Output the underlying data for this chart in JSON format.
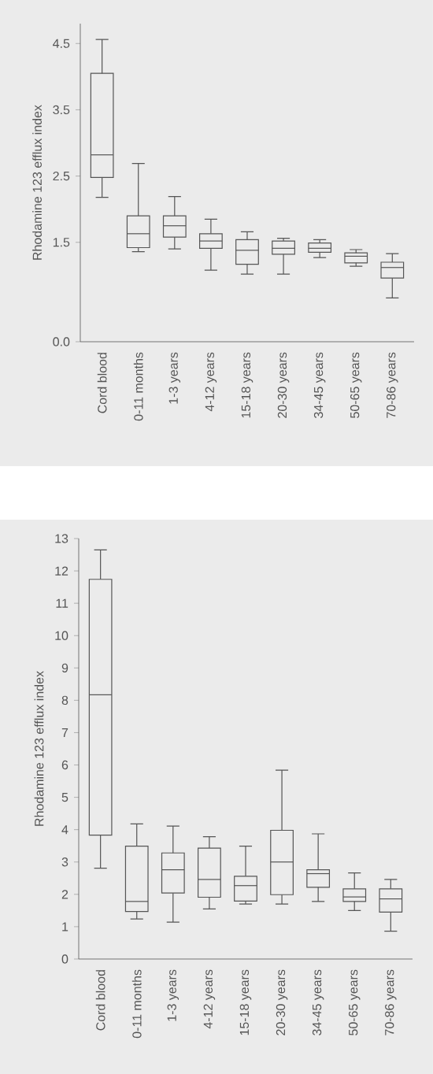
{
  "chart_data": [
    {
      "type": "box",
      "ylabel": "Rhodamine 123 efflux index",
      "categories": [
        "Cord blood",
        "0-11  months",
        "1-3 years",
        "4-12 years",
        "15-18 years",
        "20-30 years",
        "34-45 years",
        "50-65 years",
        "70-86 years"
      ],
      "boxes": [
        {
          "low": 2.18,
          "q1": 2.48,
          "median": 2.82,
          "q3": 4.05,
          "high": 4.56
        },
        {
          "low": 1.36,
          "q1": 1.42,
          "median": 1.63,
          "q3": 1.9,
          "high": 2.69
        },
        {
          "low": 1.4,
          "q1": 1.58,
          "median": 1.75,
          "q3": 1.9,
          "high": 2.19
        },
        {
          "low": 1.08,
          "q1": 1.41,
          "median": 1.52,
          "q3": 1.63,
          "high": 1.85
        },
        {
          "low": 1.02,
          "q1": 1.17,
          "median": 1.38,
          "q3": 1.54,
          "high": 1.66
        },
        {
          "low": 1.02,
          "q1": 1.32,
          "median": 1.41,
          "q3": 1.52,
          "high": 1.56
        },
        {
          "low": 1.27,
          "q1": 1.35,
          "median": 1.41,
          "q3": 1.49,
          "high": 1.54
        },
        {
          "low": 1.14,
          "q1": 1.19,
          "median": 1.29,
          "q3": 1.34,
          "high": 1.39
        },
        {
          "low": 0.66,
          "q1": 0.96,
          "median": 1.12,
          "q3": 1.2,
          "high": 1.33
        }
      ],
      "ylim": [
        0,
        4.8
      ],
      "yticks": [
        {
          "value": 0,
          "label": "0.0"
        },
        1.5,
        2.5,
        3.5,
        4.5
      ]
    },
    {
      "type": "box",
      "ylabel": "Rhodamine 123 efflux index",
      "categories": [
        "Cord blood",
        "0-11  months",
        "1-3 years",
        "4-12 years",
        "15-18 years",
        "20-30 years",
        "34-45 years",
        "50-65 years",
        "70-86 years"
      ],
      "boxes": [
        {
          "low": 2.81,
          "q1": 3.83,
          "median": 8.17,
          "q3": 11.74,
          "high": 12.65
        },
        {
          "low": 1.24,
          "q1": 1.47,
          "median": 1.78,
          "q3": 3.49,
          "high": 4.18
        },
        {
          "low": 1.14,
          "q1": 2.04,
          "median": 2.76,
          "q3": 3.28,
          "high": 4.11
        },
        {
          "low": 1.55,
          "q1": 1.91,
          "median": 2.46,
          "q3": 3.43,
          "high": 3.78
        },
        {
          "low": 1.7,
          "q1": 1.79,
          "median": 2.27,
          "q3": 2.56,
          "high": 3.49
        },
        {
          "low": 1.7,
          "q1": 1.99,
          "median": 3.0,
          "q3": 3.98,
          "high": 5.84
        },
        {
          "low": 1.78,
          "q1": 2.22,
          "median": 2.64,
          "q3": 2.76,
          "high": 3.87
        },
        {
          "low": 1.5,
          "q1": 1.78,
          "median": 1.92,
          "q3": 2.17,
          "high": 2.66
        },
        {
          "low": 0.86,
          "q1": 1.45,
          "median": 1.86,
          "q3": 2.17,
          "high": 2.46
        }
      ],
      "ylim": [
        0,
        13
      ],
      "yticks": [
        0,
        1,
        2,
        3,
        4,
        5,
        6,
        7,
        8,
        9,
        10,
        11,
        12,
        13
      ]
    }
  ]
}
